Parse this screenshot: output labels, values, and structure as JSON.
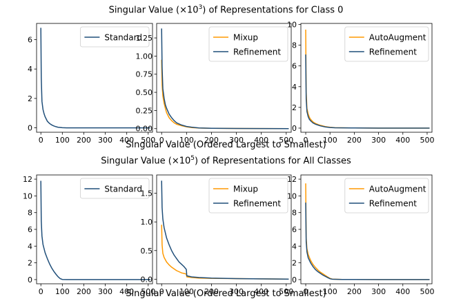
{
  "figure": {
    "row_titles": [
      {
        "pre": "Singular Value (×10",
        "exp": "3",
        "post": ") of Representations for Class 0"
      },
      {
        "pre": "Singular Value (×10",
        "exp": "5",
        "post": ") of Representations for All Classes"
      }
    ],
    "xlabel": "Singular Value (Ordered Largest to Smallest)"
  },
  "colors": {
    "standard": "#1f4e79",
    "mixup": "#ff9900",
    "autoaugment": "#ff9900",
    "refinement": "#1f4e79"
  },
  "chart_data": [
    {
      "type": "line",
      "row": 0,
      "col": 0,
      "xlim": [
        -20,
        520
      ],
      "ylim": [
        -0.3,
        7.1
      ],
      "xticks": [
        0,
        100,
        200,
        300,
        400,
        500
      ],
      "yticks": [
        0,
        2,
        4,
        6
      ],
      "legend_position": "top-right",
      "series": [
        {
          "name": "Standard",
          "color": "#1f4e79",
          "x": [
            0,
            2,
            5,
            10,
            15,
            20,
            30,
            40,
            50,
            60,
            70,
            80,
            100,
            120,
            200,
            300,
            400,
            510
          ],
          "y": [
            6.8,
            3.4,
            1.8,
            1.25,
            0.95,
            0.75,
            0.45,
            0.3,
            0.2,
            0.13,
            0.08,
            0.04,
            0.01,
            0.0,
            0.0,
            0.0,
            0.0,
            0.0
          ]
        }
      ]
    },
    {
      "type": "line",
      "row": 0,
      "col": 1,
      "xlim": [
        -20,
        520
      ],
      "ylim": [
        -0.05,
        1.45
      ],
      "xticks": [
        0,
        100,
        200,
        300,
        400,
        500
      ],
      "yticks": [
        0.0,
        0.25,
        0.5,
        0.75,
        1.0,
        1.25
      ],
      "ytick_labels": [
        "0.00",
        "0.25",
        "0.50",
        "0.75",
        "1.00",
        "1.25"
      ],
      "legend_position": "top-right",
      "series": [
        {
          "name": "Mixup",
          "color": "#ff9900",
          "x": [
            0,
            2,
            5,
            10,
            15,
            20,
            30,
            40,
            50,
            60,
            80,
            100,
            120,
            150,
            200,
            300,
            400,
            510
          ],
          "y": [
            0.95,
            0.6,
            0.45,
            0.35,
            0.28,
            0.22,
            0.15,
            0.11,
            0.08,
            0.06,
            0.04,
            0.025,
            0.015,
            0.008,
            0.004,
            0.002,
            0.001,
            0.0
          ]
        },
        {
          "name": "Refinement",
          "color": "#1f4e79",
          "x": [
            0,
            2,
            5,
            10,
            15,
            20,
            30,
            40,
            50,
            60,
            80,
            100,
            120,
            150,
            200,
            300,
            400,
            510
          ],
          "y": [
            1.38,
            0.85,
            0.55,
            0.42,
            0.33,
            0.28,
            0.2,
            0.15,
            0.11,
            0.08,
            0.05,
            0.03,
            0.02,
            0.01,
            0.005,
            0.002,
            0.001,
            0.0
          ]
        }
      ]
    },
    {
      "type": "line",
      "row": 0,
      "col": 2,
      "xlim": [
        -20,
        520
      ],
      "ylim": [
        -0.4,
        10.1
      ],
      "xticks": [
        0,
        100,
        200,
        300,
        400,
        500
      ],
      "yticks": [
        0,
        2,
        4,
        6,
        8,
        10
      ],
      "legend_position": "top-right",
      "series": [
        {
          "name": "AutoAugment",
          "color": "#ff9900",
          "x": [
            0,
            2,
            5,
            10,
            15,
            20,
            30,
            40,
            50,
            60,
            80,
            100,
            120,
            200,
            300,
            400,
            510
          ],
          "y": [
            9.5,
            3.5,
            1.9,
            1.35,
            1.05,
            0.85,
            0.6,
            0.45,
            0.35,
            0.27,
            0.15,
            0.08,
            0.04,
            0.01,
            0.0,
            0.0,
            0.0
          ]
        },
        {
          "name": "Refinement",
          "color": "#1f4e79",
          "x": [
            0,
            2,
            5,
            10,
            15,
            20,
            30,
            40,
            50,
            60,
            80,
            100,
            120,
            200,
            300,
            400,
            510
          ],
          "y": [
            7.1,
            2.8,
            1.6,
            1.1,
            0.85,
            0.7,
            0.5,
            0.38,
            0.3,
            0.22,
            0.12,
            0.06,
            0.03,
            0.01,
            0.0,
            0.0,
            0.0
          ]
        }
      ]
    },
    {
      "type": "line",
      "row": 1,
      "col": 0,
      "xlim": [
        -20,
        520
      ],
      "ylim": [
        -0.5,
        12.5
      ],
      "xticks": [
        0,
        100,
        200,
        300,
        400,
        500
      ],
      "yticks": [
        0,
        2,
        4,
        6,
        8,
        10,
        12
      ],
      "legend_position": "top-right",
      "series": [
        {
          "name": "Standard",
          "color": "#1f4e79",
          "x": [
            0,
            2,
            5,
            10,
            20,
            30,
            40,
            50,
            60,
            70,
            80,
            90,
            100,
            120,
            200,
            300,
            400,
            510
          ],
          "y": [
            11.8,
            7.0,
            5.2,
            4.2,
            3.2,
            2.5,
            1.9,
            1.4,
            1.0,
            0.65,
            0.35,
            0.12,
            0.02,
            0.0,
            0.0,
            0.0,
            0.0,
            0.0
          ]
        }
      ]
    },
    {
      "type": "line",
      "row": 1,
      "col": 1,
      "xlim": [
        -20,
        520
      ],
      "ylim": [
        -0.08,
        1.82
      ],
      "xticks": [
        0,
        100,
        200,
        300,
        400,
        500
      ],
      "yticks": [
        0.0,
        0.5,
        1.0,
        1.5
      ],
      "ytick_labels": [
        "0.0",
        "0.5",
        "1.0",
        "1.5"
      ],
      "legend_position": "top-right",
      "series": [
        {
          "name": "Mixup",
          "color": "#ff9900",
          "x": [
            0,
            2,
            5,
            10,
            20,
            30,
            40,
            50,
            60,
            70,
            80,
            90,
            99,
            101,
            120,
            150,
            200,
            300,
            400,
            510
          ],
          "y": [
            0.95,
            0.6,
            0.45,
            0.38,
            0.3,
            0.25,
            0.21,
            0.18,
            0.15,
            0.13,
            0.11,
            0.1,
            0.09,
            0.04,
            0.03,
            0.02,
            0.015,
            0.01,
            0.005,
            0.0
          ]
        },
        {
          "name": "Refinement",
          "color": "#1f4e79",
          "x": [
            0,
            2,
            5,
            10,
            20,
            30,
            40,
            50,
            60,
            70,
            80,
            90,
            99,
            101,
            120,
            150,
            200,
            300,
            400,
            510
          ],
          "y": [
            1.72,
            1.25,
            1.05,
            0.9,
            0.72,
            0.6,
            0.5,
            0.42,
            0.36,
            0.3,
            0.26,
            0.22,
            0.17,
            0.06,
            0.04,
            0.03,
            0.02,
            0.01,
            0.005,
            0.0
          ]
        }
      ]
    },
    {
      "type": "line",
      "row": 1,
      "col": 2,
      "xlim": [
        -20,
        520
      ],
      "ylim": [
        -0.5,
        12.5
      ],
      "xticks": [
        0,
        100,
        200,
        300,
        400,
        500
      ],
      "yticks": [
        0,
        2,
        4,
        6,
        8,
        10,
        12
      ],
      "legend_position": "top-right",
      "series": [
        {
          "name": "AutoAugment",
          "color": "#ff9900",
          "x": [
            0,
            2,
            5,
            10,
            20,
            30,
            40,
            50,
            60,
            70,
            80,
            90,
            100,
            110,
            150,
            200,
            300,
            400,
            510
          ],
          "y": [
            11.5,
            5.0,
            3.7,
            3.0,
            2.3,
            1.8,
            1.45,
            1.15,
            0.9,
            0.7,
            0.5,
            0.32,
            0.15,
            0.05,
            0.02,
            0.01,
            0.0,
            0.0,
            0.0
          ]
        },
        {
          "name": "Refinement",
          "color": "#1f4e79",
          "x": [
            0,
            2,
            5,
            10,
            20,
            30,
            40,
            50,
            60,
            70,
            80,
            90,
            100,
            110,
            150,
            200,
            300,
            400,
            510
          ],
          "y": [
            9.2,
            4.5,
            3.3,
            2.6,
            2.0,
            1.55,
            1.2,
            0.95,
            0.75,
            0.55,
            0.4,
            0.25,
            0.1,
            0.04,
            0.02,
            0.01,
            0.0,
            0.0,
            0.0
          ]
        }
      ]
    }
  ]
}
